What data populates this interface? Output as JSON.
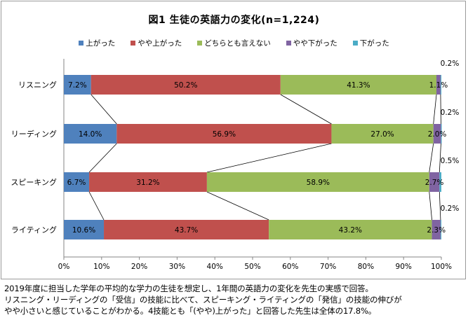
{
  "title": "図1  生徒の英語力の変化(n=1,224)",
  "chart_data": {
    "type": "bar",
    "orientation": "horizontal",
    "stacked": true,
    "categories": [
      "リスニング",
      "リーディング",
      "スピーキング",
      "ライティング"
    ],
    "series": [
      {
        "name": "上がった",
        "color": "#4f81bd",
        "values": [
          7.2,
          14.0,
          6.7,
          10.6
        ],
        "labels": [
          "7.2%",
          "14.0%",
          "6.7%",
          "10.6%"
        ]
      },
      {
        "name": "やや上がった",
        "color": "#c0504d",
        "values": [
          50.2,
          56.9,
          31.2,
          43.7
        ],
        "labels": [
          "50.2%",
          "56.9%",
          "31.2%",
          "43.7%"
        ]
      },
      {
        "name": "どちらとも言えない",
        "color": "#9bbb59",
        "values": [
          41.3,
          27.0,
          58.9,
          43.2
        ],
        "labels": [
          "41.3%",
          "27.0%",
          "58.9%",
          "43.2%"
        ]
      },
      {
        "name": "やや下がった",
        "color": "#8064a2",
        "values": [
          1.1,
          2.0,
          2.7,
          2.3
        ],
        "labels": [
          "1.1%",
          "2.0%",
          "2.7%",
          "2.3%"
        ]
      },
      {
        "name": "下がった",
        "color": "#4bacc6",
        "values": [
          0.2,
          0.2,
          0.5,
          0.2
        ],
        "labels": [
          "0.2%",
          "0.2%",
          "0.5%",
          "0.2%"
        ]
      }
    ],
    "xlim": [
      0,
      100
    ],
    "xticks": [
      "0%",
      "10%",
      "20%",
      "30%",
      "40%",
      "50%",
      "60%",
      "70%",
      "80%",
      "90%",
      "100%"
    ],
    "legend_position": "top",
    "series_lines": true
  },
  "caption": [
    "2019年度に担当した学年の平均的な学力の生徒を想定し、1年間の英語力の変化を先生の実感で回答。",
    "リスニング・リーディングの「受信」の技能に比べて、スピーキング・ライティングの「発信」の技能の伸びが",
    "やや小さいと感じていることがわかる。4技能とも「(やや)上がった」と回答した先生は全体の17.8%。"
  ]
}
